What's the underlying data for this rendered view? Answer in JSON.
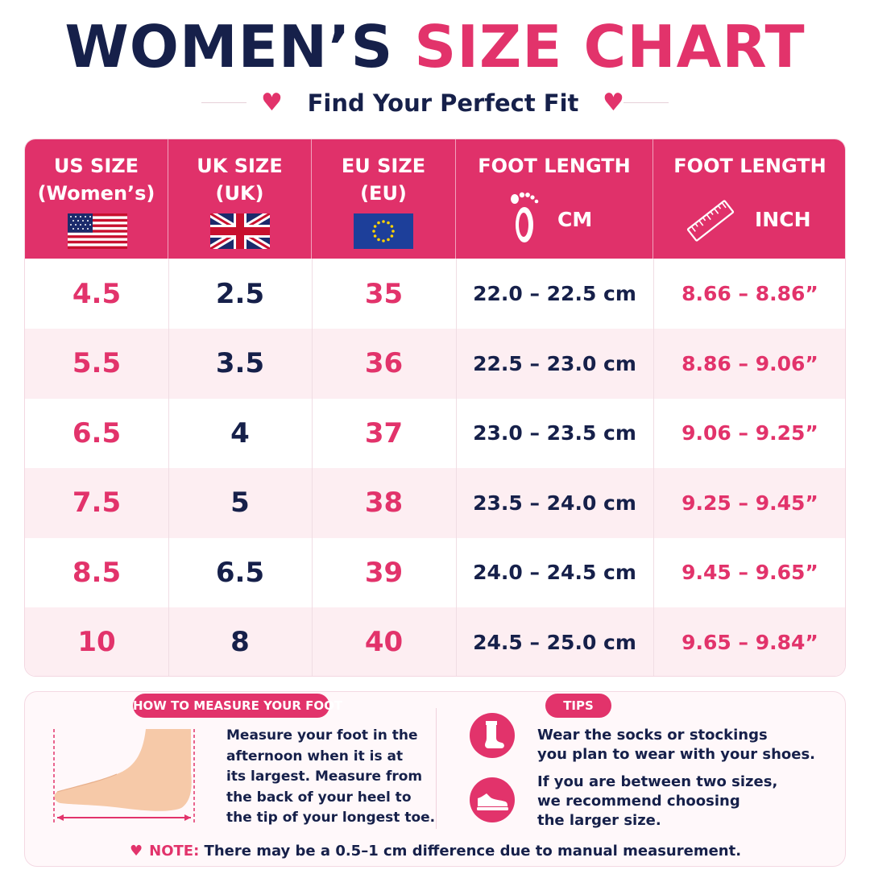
{
  "title": {
    "part1": "WOMEN’S",
    "part2": "SIZE CHART"
  },
  "subtitle": "Find Your Perfect Fit",
  "colors": {
    "accent": "#e2336b",
    "navy": "#16204a",
    "row_alt": "#fdeef2"
  },
  "chart_data": {
    "type": "table",
    "columns": [
      {
        "label1": "US SIZE",
        "label2": "(Women’s)",
        "icon": "us-flag-icon"
      },
      {
        "label1": "UK SIZE",
        "label2": "(UK)",
        "icon": "uk-flag-icon"
      },
      {
        "label1": "EU SIZE",
        "label2": "(EU)",
        "icon": "eu-flag-icon"
      },
      {
        "label1": "FOOT LENGTH",
        "label2": "CM",
        "icon": "footprint-icon"
      },
      {
        "label1": "FOOT LENGTH",
        "label2": "INCH",
        "icon": "ruler-icon"
      }
    ],
    "rows": [
      {
        "us": "4.5",
        "uk": "2.5",
        "eu": "35",
        "cm": "22.0 – 22.5 cm",
        "inch": "8.66 – 8.86”"
      },
      {
        "us": "5.5",
        "uk": "3.5",
        "eu": "36",
        "cm": "22.5 – 23.0 cm",
        "inch": "8.86 – 9.06”"
      },
      {
        "us": "6.5",
        "uk": "4",
        "eu": "37",
        "cm": "23.0 – 23.5 cm",
        "inch": "9.06 – 9.25”"
      },
      {
        "us": "7.5",
        "uk": "5",
        "eu": "38",
        "cm": "23.5 – 24.0 cm",
        "inch": "9.25 – 9.45”"
      },
      {
        "us": "8.5",
        "uk": "6.5",
        "eu": "39",
        "cm": "24.0 – 24.5 cm",
        "inch": "9.45 – 9.65”"
      },
      {
        "us": "10",
        "uk": "8",
        "eu": "40",
        "cm": "24.5 – 25.0 cm",
        "inch": "9.65 – 9.84”"
      }
    ]
  },
  "measure": {
    "title": "HOW TO MEASURE YOUR FOOT",
    "lines": [
      "Measure your foot in the",
      "afternoon when it is at",
      "its largest. Measure from",
      "the back of your heel to",
      "the tip of your longest toe."
    ]
  },
  "tips": {
    "title": "TIPS",
    "tip1": [
      "Wear the socks or stockings",
      "you plan to wear with your shoes."
    ],
    "tip2": [
      "If you are between two sizes,",
      "we recommend choosing",
      "the larger size."
    ]
  },
  "note": {
    "label": "NOTE:",
    "text": " There may be a 0.5–1 cm difference due to manual measurement."
  }
}
